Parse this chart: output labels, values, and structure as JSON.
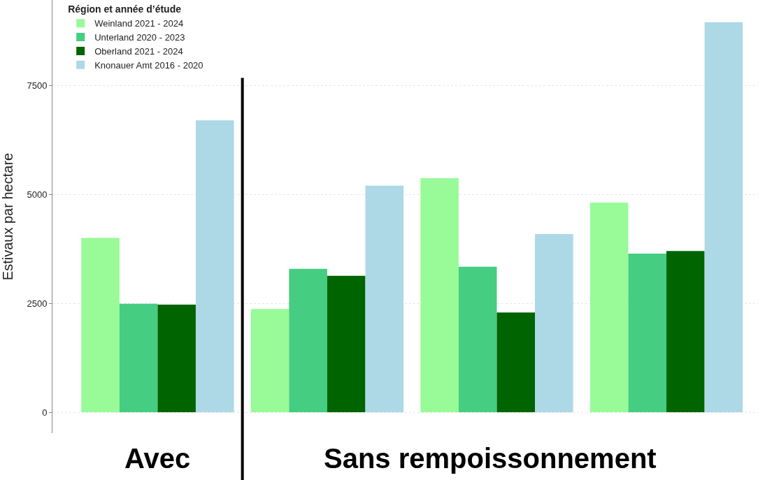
{
  "chart_data": {
    "type": "bar",
    "ylabel": "Estivaux par hectare",
    "legend_title": "Région et année d’étude",
    "categories": [
      null,
      null,
      null,
      null
    ],
    "series": [
      {
        "name": "Weinland 2021 - 2024",
        "color": "#98fb98",
        "values": [
          4000,
          2370,
          5370,
          4810
        ]
      },
      {
        "name": "Unterland 2020 - 2023",
        "color": "#45cd82",
        "values": [
          2490,
          3290,
          3340,
          3640
        ]
      },
      {
        "name": "Oberland 2021 - 2024",
        "color": "#006400",
        "values": [
          2470,
          3130,
          2290,
          3700
        ]
      },
      {
        "name": "Knonauer Amt 2016 - 2020",
        "color": "#add8e6",
        "values": [
          6700,
          5200,
          4090,
          8950
        ]
      }
    ],
    "ylim": [
      -480,
      9460
    ],
    "yticks": [
      0,
      2500,
      5000,
      7500
    ],
    "grid": "y",
    "legend": "top left",
    "annotations": [
      "Avec",
      "Sans rempoissonnement"
    ]
  }
}
